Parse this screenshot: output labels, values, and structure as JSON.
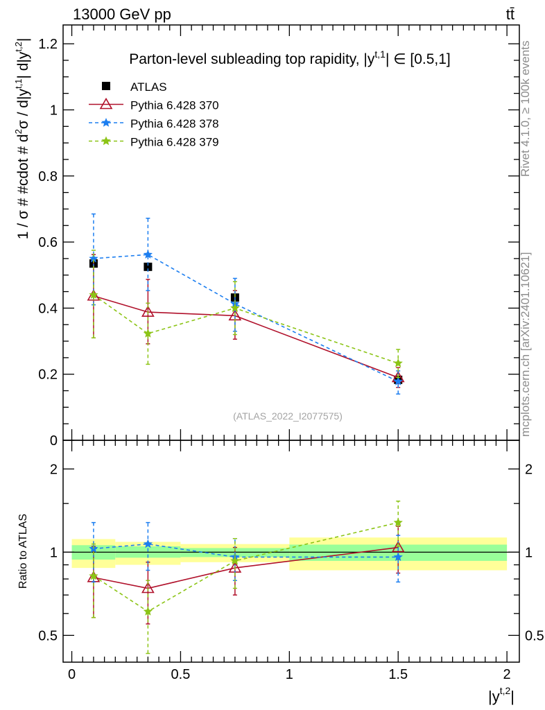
{
  "header": {
    "left": "13000 GeV pp",
    "right": "tt̄"
  },
  "side_texts": {
    "rivet": "Rivet 4.1.0, ≥ 100k events",
    "mcplots": "mcplots.cern.ch [arXiv:2401.10621]"
  },
  "watermark": "(ATLAS_2022_I2077575)",
  "chart_data": [
    {
      "type": "line",
      "title": "Parton-level subleading top rapidity, |y^{t,1}| ∈ [0.5,1]",
      "title_parts": {
        "pre": "Parton-level subleading top rapidity, |y",
        "sup": "t,1",
        "post": "| ∈ [0.5,1]"
      },
      "ylabel": "1 / σ # #cdot # d²σ / d|y^{t,1}| d|y^{t,2}|",
      "ylabel_parts": {
        "a": "1 / σ # #cdot # d",
        "b": "2",
        "c": "σ / d|y",
        "d": "t,1",
        "e": "| d|y",
        "f": "t,2",
        "g": "|"
      },
      "xlim": [
        -0.04,
        2.057
      ],
      "ylim": [
        0,
        1.257
      ],
      "yticks": [
        "0",
        "0.2",
        "0.4",
        "0.6",
        "0.8",
        "1",
        "1.2"
      ],
      "x": [
        0.1,
        0.35,
        0.75,
        1.5
      ],
      "legend_position": "top-left",
      "series": [
        {
          "name": "ATLAS",
          "color": "#000000",
          "marker": "square",
          "values": [
            0.535,
            0.525,
            0.432,
            0.183
          ],
          "err": [
            [
              0.525,
              0.545
            ],
            [
              0.515,
              0.535
            ],
            [
              0.424,
              0.44
            ],
            [
              0.176,
              0.19
            ]
          ]
        },
        {
          "name": "Pythia 6.428 370",
          "color": "#b0102a",
          "marker": "triangle-open",
          "dash": "none",
          "values": [
            0.437,
            0.388,
            0.377,
            0.19
          ],
          "err": [
            [
              0.31,
              0.562
            ],
            [
              0.292,
              0.487
            ],
            [
              0.306,
              0.453
            ],
            [
              0.16,
              0.22
            ]
          ]
        },
        {
          "name": "Pythia 6.428 378",
          "color": "#1c7ef0",
          "marker": "star",
          "dash": "5,4",
          "values": [
            0.55,
            0.562,
            0.413,
            0.178
          ],
          "err": [
            [
              0.41,
              0.685
            ],
            [
              0.453,
              0.672
            ],
            [
              0.33,
              0.49
            ],
            [
              0.14,
              0.21
            ]
          ]
        },
        {
          "name": "Pythia 6.428 379",
          "color": "#8cc416",
          "marker": "star",
          "dash": "5,4",
          "values": [
            0.44,
            0.323,
            0.4,
            0.233
          ],
          "err": [
            [
              0.31,
              0.575
            ],
            [
              0.23,
              0.415
            ],
            [
              0.32,
              0.48
            ],
            [
              0.19,
              0.275
            ]
          ]
        }
      ]
    },
    {
      "type": "line",
      "ylabel": "Ratio to ATLAS",
      "xlabel": "|y^{t,2}|",
      "xlabel_parts": {
        "a": "|y",
        "b": "t,2",
        "c": "|"
      },
      "yscale": "log",
      "ylim": [
        0.4,
        2.54
      ],
      "yticks": [
        "0.5",
        "1",
        "2"
      ],
      "xticks": [
        "0",
        "0.5",
        "1",
        "1.5",
        "2"
      ],
      "x": [
        0.1,
        0.35,
        0.75,
        1.5
      ],
      "bands": {
        "bins": [
          [
            0,
            0.2
          ],
          [
            0.2,
            0.5
          ],
          [
            0.5,
            1
          ],
          [
            1,
            2
          ]
        ],
        "yellow": [
          [
            0.877,
            1.115
          ],
          [
            0.9,
            1.09
          ],
          [
            0.92,
            1.07
          ],
          [
            0.86,
            1.13
          ]
        ],
        "green": [
          [
            0.94,
            1.06
          ],
          [
            0.955,
            1.05
          ],
          [
            0.96,
            1.035
          ],
          [
            0.93,
            1.065
          ]
        ],
        "yellow_color": "#ffff99",
        "green_color": "#99ff99"
      },
      "series": [
        {
          "name": "Pythia 6.428 370",
          "values": [
            0.81,
            0.74,
            0.877,
            1.04
          ],
          "err": [
            [
              0.58,
              1.05
            ],
            [
              0.55,
              0.92
            ],
            [
              0.7,
              1.04
            ],
            [
              0.84,
              1.24
            ]
          ]
        },
        {
          "name": "Pythia 6.428 378",
          "values": [
            1.029,
            1.07,
            0.96,
            0.96
          ],
          "err": [
            [
              0.78,
              1.28
            ],
            [
              0.86,
              1.28
            ],
            [
              0.79,
              1.12
            ],
            [
              0.78,
              1.15
            ]
          ]
        },
        {
          "name": "Pythia 6.428 379",
          "values": [
            0.82,
            0.61,
            0.93,
            1.28
          ],
          "err": [
            [
              0.58,
              1.07
            ],
            [
              0.43,
              0.79
            ],
            [
              0.74,
              1.12
            ],
            [
              1.05,
              1.53
            ]
          ]
        }
      ]
    }
  ]
}
